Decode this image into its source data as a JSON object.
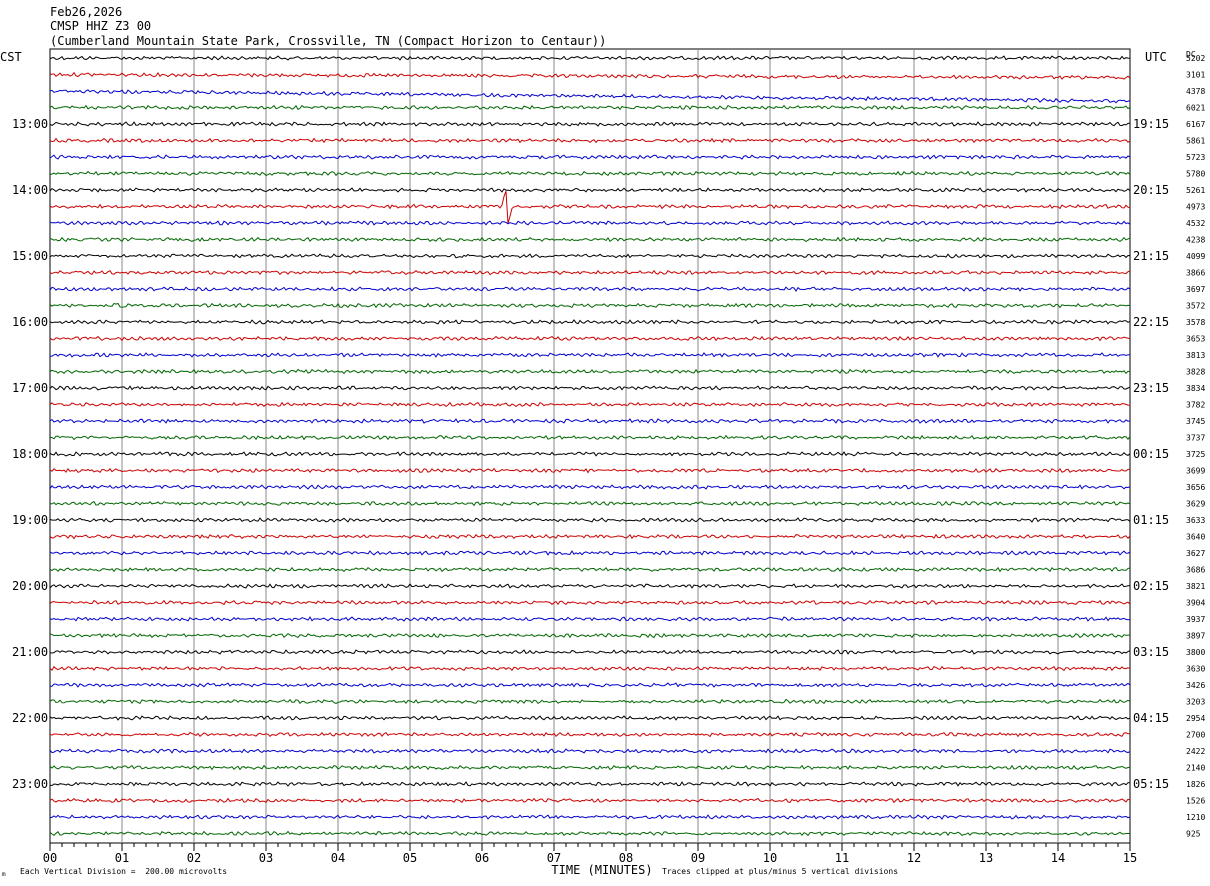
{
  "header": {
    "date": "Feb26,2026",
    "station": "CMSP HHZ Z3 00",
    "location": "(Cumberland Mountain State Park, Crossville, TN (Compact Horizon to Centaur))"
  },
  "footer": {
    "scale_note": "Each Vertical Division =  200.00 microvolts",
    "clip_note": "Traces clipped at plus/minus 5 vertical divisions",
    "mark": "m"
  },
  "chart_data": {
    "type": "line",
    "title": "",
    "xlabel": "TIME (MINUTES)",
    "left_axis_label": "CST",
    "right_axis_label": "UTC",
    "dc_label": "DC",
    "xlim": [
      0,
      15
    ],
    "x_ticks": [
      "00",
      "01",
      "02",
      "03",
      "04",
      "05",
      "06",
      "07",
      "08",
      "09",
      "10",
      "11",
      "12",
      "13",
      "14",
      "15"
    ],
    "minutes_per_trace": 15,
    "trace_colors": [
      "#000000",
      "#cc0000",
      "#0000cc",
      "#006600"
    ],
    "left_hour_labels": [
      "13:00",
      "14:00",
      "15:00",
      "16:00",
      "17:00",
      "18:00",
      "19:00",
      "20:00",
      "21:00",
      "22:00",
      "23:00"
    ],
    "right_hour_labels": [
      "19:15",
      "20:15",
      "21:15",
      "22:15",
      "23:15",
      "00:15",
      "01:15",
      "02:15",
      "03:15",
      "04:15",
      "05:15"
    ],
    "dc_offsets": [
      5202,
      3101,
      4378,
      6021,
      6167,
      5861,
      5723,
      5780,
      5261,
      4973,
      4532,
      4238,
      4099,
      3866,
      3697,
      3572,
      3578,
      3653,
      3813,
      3828,
      3834,
      3782,
      3745,
      3737,
      3725,
      3699,
      3656,
      3629,
      3633,
      3640,
      3627,
      3686,
      3821,
      3904,
      3937,
      3897,
      3800,
      3630,
      3426,
      3203,
      2954,
      2700,
      2422,
      2140,
      1826,
      1526,
      1210,
      925
    ],
    "events": [
      {
        "trace_index": 9,
        "minute": 6.35,
        "amplitude_divisions": 1.6
      },
      {
        "trace_index": 15,
        "minute": 0.95,
        "amplitude_divisions": 0.3
      }
    ],
    "grid": true
  }
}
